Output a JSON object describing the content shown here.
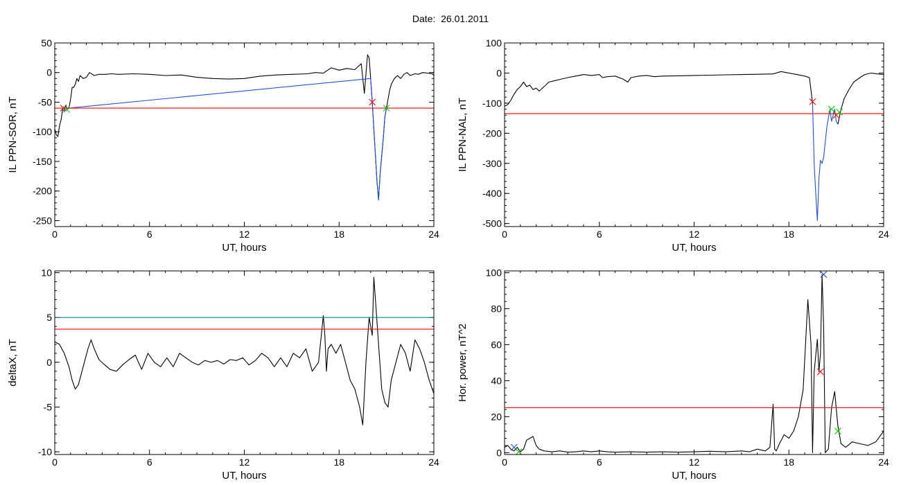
{
  "figure": {
    "title": "Date:  26.01.2011"
  },
  "chart_data": [
    {
      "type": "line",
      "xlabel": "UT, hours",
      "ylabel": "IL PPN-SOR, nT",
      "xlim": [
        0,
        24
      ],
      "ylim": [
        -260,
        50
      ],
      "xticks": [
        0,
        6,
        12,
        18,
        24
      ],
      "yticks": [
        -250,
        -200,
        -150,
        -100,
        -50,
        0,
        50
      ],
      "series": [
        {
          "color": "#000000",
          "x": [
            0,
            0.1,
            0.2,
            0.3,
            0.4,
            0.5,
            0.6,
            0.7,
            0.8,
            0.9,
            1.0,
            1.1,
            1.2,
            1.3,
            1.4,
            1.5,
            1.6,
            1.8,
            2.0,
            2.2,
            2.5,
            2.8,
            3.2,
            3.6,
            4,
            5,
            6,
            7,
            8,
            9,
            10,
            11,
            12,
            13,
            14,
            15,
            16,
            16.5,
            17,
            17.5,
            18,
            18.5,
            19,
            19.4,
            19.6,
            19.8,
            19.9,
            20.0,
            20.1,
            20.2,
            20.3,
            20.4,
            20.5,
            20.6,
            20.7,
            20.8,
            20.9,
            21.0,
            21.1,
            21.2,
            21.3,
            21.5,
            21.7,
            21.9,
            22.1,
            22.3,
            22.5,
            22.8,
            23.0,
            23.3,
            23.6,
            23.9,
            24
          ],
          "y": [
            -95,
            -105,
            -108,
            -90,
            -80,
            -62,
            -65,
            -55,
            -62,
            -60,
            -45,
            -25,
            -25,
            -20,
            -10,
            -15,
            -5,
            -10,
            -8,
            0,
            -5,
            -3,
            -3,
            -2,
            -3,
            -2,
            -3,
            -5,
            -4,
            -8,
            -10,
            -11,
            -10,
            -6,
            -4,
            -3,
            -2,
            0,
            -1,
            8,
            4,
            7,
            5,
            15,
            -35,
            30,
            25,
            -10,
            -50,
            -95,
            -140,
            -185,
            -215,
            -170,
            -140,
            -110,
            -75,
            -60,
            -45,
            -30,
            -20,
            -10,
            -5,
            -10,
            -3,
            0,
            -5,
            -2,
            -3,
            0,
            -1,
            -2,
            -5
          ]
        },
        {
          "color": "#1f4fd8",
          "x": [
            0.5,
            0.6,
            0.7,
            0.8,
            0.9,
            20.0,
            20.1,
            20.2,
            20.3,
            20.4,
            20.5,
            20.6,
            20.7,
            20.8,
            20.9,
            21.0
          ],
          "y": [
            -62,
            -65,
            -55,
            -62,
            -60,
            -10,
            -50,
            -95,
            -140,
            -185,
            -215,
            -170,
            -140,
            -110,
            -75,
            -60
          ]
        }
      ],
      "hlines": [
        {
          "y": -60,
          "color": "#ff0000"
        }
      ],
      "markers": [
        {
          "x": 0.55,
          "y": -60,
          "color": "#ff0000"
        },
        {
          "x": 0.75,
          "y": -62,
          "color": "#00cc00"
        },
        {
          "x": 20.1,
          "y": -50,
          "color": "#ff0000"
        },
        {
          "x": 21.0,
          "y": -60,
          "color": "#00cc00"
        }
      ]
    },
    {
      "type": "line",
      "xlabel": "UT, hours",
      "ylabel": "IL PPN-NAL, nT",
      "xlim": [
        0,
        24
      ],
      "ylim": [
        -510,
        100
      ],
      "xticks": [
        0,
        6,
        12,
        18,
        24
      ],
      "yticks": [
        -500,
        -400,
        -300,
        -200,
        -100,
        0,
        100
      ],
      "series": [
        {
          "color": "#000000",
          "x": [
            0,
            0.2,
            0.4,
            0.6,
            0.8,
            1.0,
            1.2,
            1.4,
            1.6,
            1.8,
            2.0,
            2.2,
            2.5,
            2.8,
            3.2,
            3.6,
            4,
            4.5,
            5,
            5.5,
            6,
            6.2,
            6.5,
            7,
            7.5,
            7.8,
            8,
            8.5,
            9,
            9.5,
            10,
            11,
            12,
            13,
            14,
            15,
            16,
            17,
            17.5,
            18,
            18.5,
            19,
            19.3,
            19.5
          ],
          "y": [
            -110,
            -105,
            -90,
            -70,
            -55,
            -45,
            -30,
            -45,
            -40,
            -55,
            -50,
            -60,
            -45,
            -30,
            -25,
            -20,
            -15,
            -10,
            -5,
            -8,
            -5,
            -15,
            -12,
            -10,
            -20,
            -30,
            -15,
            -10,
            -8,
            -12,
            -10,
            -9,
            -8,
            -7,
            -6,
            -5,
            -4,
            -3,
            5,
            0,
            -5,
            -10,
            -15,
            -100
          ]
        },
        {
          "color": "#1f4fd8",
          "x": [
            19.5,
            19.6,
            19.7,
            19.8,
            19.9,
            20.0,
            20.1,
            20.2,
            20.3,
            20.4,
            20.5,
            20.6,
            20.7,
            20.8,
            20.9,
            21.0,
            21.1
          ],
          "y": [
            -100,
            -300,
            -400,
            -490,
            -350,
            -290,
            -300,
            -280,
            -230,
            -180,
            -150,
            -120,
            -160,
            -140,
            -120,
            -160,
            -170
          ]
        },
        {
          "color": "#000000",
          "x": [
            21.1,
            21.3,
            21.5,
            21.8,
            22.1,
            22.5,
            22.8,
            23.2,
            23.6,
            24
          ],
          "y": [
            -170,
            -120,
            -85,
            -55,
            -30,
            -15,
            -5,
            0,
            -3,
            -5
          ]
        }
      ],
      "hlines": [
        {
          "y": -135,
          "color": "#ff0000"
        }
      ],
      "markers": [
        {
          "x": 19.5,
          "y": -95,
          "color": "#ff0000"
        },
        {
          "x": 20.7,
          "y": -120,
          "color": "#00cc00"
        },
        {
          "x": 21.0,
          "y": -140,
          "color": "#ff0000"
        },
        {
          "x": 21.2,
          "y": -130,
          "color": "#00cc00"
        }
      ]
    },
    {
      "type": "line",
      "xlabel": "UT, hours",
      "ylabel": "deltaX, nT",
      "xlim": [
        0,
        24
      ],
      "ylim": [
        -10.3,
        10.2
      ],
      "xticks": [
        0,
        6,
        12,
        18,
        24
      ],
      "yticks": [
        -10,
        -5,
        0,
        5,
        10
      ],
      "series": [
        {
          "color": "#000000",
          "x": [
            0,
            0.3,
            0.6,
            0.9,
            1.1,
            1.3,
            1.5,
            1.8,
            2.1,
            2.3,
            2.5,
            2.8,
            3.1,
            3.5,
            3.9,
            4.3,
            4.7,
            5.1,
            5.5,
            5.9,
            6.3,
            6.7,
            7.1,
            7.5,
            7.9,
            8.3,
            8.7,
            9.1,
            9.5,
            9.9,
            10.3,
            10.7,
            11.1,
            11.5,
            11.9,
            12.3,
            12.7,
            13.1,
            13.5,
            13.9,
            14.3,
            14.7,
            15.1,
            15.5,
            15.9,
            16.3,
            16.7,
            17.0,
            17.1,
            17.2,
            17.3,
            17.5,
            17.8,
            18.1,
            18.4,
            18.7,
            19.0,
            19.3,
            19.5,
            19.7,
            19.9,
            20.1,
            20.2,
            20.3,
            20.5,
            20.7,
            20.9,
            21.1,
            21.3,
            21.6,
            21.9,
            22.2,
            22.5,
            22.8,
            23.1,
            23.4,
            23.7,
            24
          ],
          "y": [
            2.3,
            2,
            1,
            -0.5,
            -2,
            -3,
            -2.5,
            -0.5,
            1.5,
            2.5,
            1.5,
            0.3,
            -0.2,
            -0.8,
            -1,
            -0.3,
            0.3,
            0.8,
            -0.8,
            1,
            0,
            -0.5,
            0.5,
            -0.5,
            1,
            0.5,
            0,
            -0.3,
            0.2,
            0,
            0.2,
            -0.2,
            0.3,
            0.2,
            0.5,
            -0.3,
            0.2,
            1,
            0.5,
            -0.5,
            0.5,
            -0.5,
            1,
            0.5,
            1.5,
            -1,
            0,
            5.2,
            3,
            -1,
            1.5,
            2,
            1,
            2,
            0,
            -2,
            -3,
            -5,
            -7,
            0,
            5,
            3,
            9.5,
            7,
            2,
            -3,
            -4.5,
            -5,
            -2,
            0,
            2,
            1,
            -1,
            2.5,
            1.5,
            0,
            -2,
            -3.5
          ]
        }
      ],
      "hlines": [
        {
          "y": 3.7,
          "color": "#ff0000"
        },
        {
          "y": 5,
          "color": "#008888"
        }
      ],
      "markers": []
    },
    {
      "type": "line",
      "xlabel": "UT, hours",
      "ylabel": "Hor. power, nT^2",
      "xlim": [
        0,
        24
      ],
      "ylim": [
        -1,
        101
      ],
      "xticks": [
        0,
        6,
        12,
        18,
        24
      ],
      "yticks": [
        0,
        20,
        40,
        60,
        80,
        100
      ],
      "series": [
        {
          "color": "#000000",
          "x": [
            0,
            0.2,
            0.4,
            0.6,
            0.8,
            1.0,
            1.2,
            1.4,
            1.6,
            1.8,
            2.0,
            2.2,
            2.5,
            3,
            3.5,
            4,
            4.5,
            5,
            5.5,
            6,
            6.5,
            7,
            8,
            9,
            10,
            11,
            12,
            13,
            14,
            15,
            15.5,
            16,
            16.5,
            16.8,
            17.0,
            17.1,
            17.2,
            17.4,
            17.7,
            18.0,
            18.3,
            18.6,
            18.9,
            19.2,
            19.4,
            19.5,
            19.6,
            19.8,
            19.9,
            20.0,
            20.1,
            20.2,
            20.3,
            20.5,
            20.7,
            20.9,
            21.1,
            21.3,
            21.6,
            22,
            22.5,
            23,
            23.5,
            24
          ],
          "y": [
            3,
            4,
            2,
            1,
            3,
            0.5,
            2,
            7,
            8,
            9,
            4,
            2,
            1,
            0.5,
            1,
            0.3,
            0.5,
            1,
            0.5,
            1,
            0.5,
            0.3,
            0.5,
            0.3,
            0.5,
            0.3,
            0.5,
            0.8,
            0.5,
            1,
            0.5,
            2,
            1,
            3,
            27,
            2,
            1,
            5,
            10,
            8,
            12,
            20,
            35,
            85,
            60,
            0,
            45,
            63,
            45,
            55,
            99,
            70,
            0,
            2,
            25,
            34,
            15,
            5,
            3,
            6,
            5,
            4,
            6,
            12
          ]
        }
      ],
      "hlines": [
        {
          "y": 25,
          "color": "#ff0000"
        }
      ],
      "markers": [
        {
          "x": 0.6,
          "y": 3,
          "color": "#1f4fd8"
        },
        {
          "x": 0.9,
          "y": 0.5,
          "color": "#00cc00"
        },
        {
          "x": 20.0,
          "y": 45,
          "color": "#ff0000"
        },
        {
          "x": 20.2,
          "y": 99,
          "color": "#1f4fd8"
        },
        {
          "x": 21.1,
          "y": 12,
          "color": "#00cc00"
        }
      ]
    }
  ]
}
